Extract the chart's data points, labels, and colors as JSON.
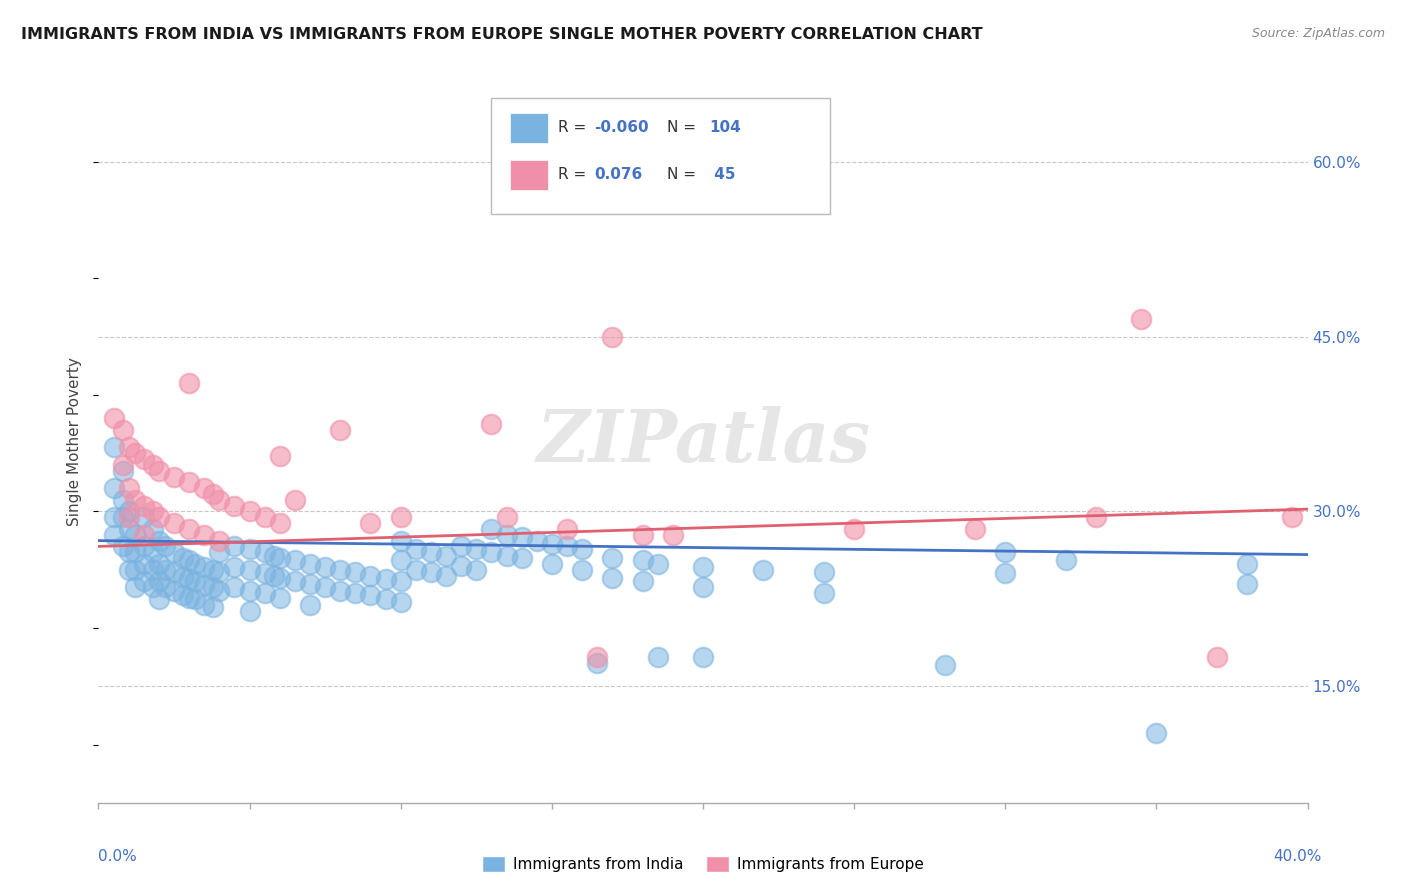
{
  "title": "IMMIGRANTS FROM INDIA VS IMMIGRANTS FROM EUROPE SINGLE MOTHER POVERTY CORRELATION CHART",
  "source": "Source: ZipAtlas.com",
  "ylabel": "Single Mother Poverty",
  "y_tick_labels": [
    "15.0%",
    "30.0%",
    "45.0%",
    "60.0%"
  ],
  "y_tick_values": [
    0.15,
    0.3,
    0.45,
    0.6
  ],
  "x_range": [
    0.0,
    0.4
  ],
  "y_range": [
    0.05,
    0.67
  ],
  "india_color": "#7ab3e0",
  "europe_color": "#f090a8",
  "india_line_color": "#4472c4",
  "europe_line_color": "#e06070",
  "watermark": "ZIPatlas",
  "background_color": "#ffffff",
  "grid_color": "#c8c8c8",
  "india_line_start_y": 0.275,
  "india_line_end_y": 0.263,
  "europe_line_start_y": 0.27,
  "europe_line_end_y": 0.302,
  "india_scatter": [
    [
      0.005,
      0.355
    ],
    [
      0.005,
      0.32
    ],
    [
      0.005,
      0.295
    ],
    [
      0.005,
      0.28
    ],
    [
      0.008,
      0.335
    ],
    [
      0.008,
      0.31
    ],
    [
      0.008,
      0.295
    ],
    [
      0.008,
      0.27
    ],
    [
      0.01,
      0.3
    ],
    [
      0.01,
      0.285
    ],
    [
      0.01,
      0.265
    ],
    [
      0.01,
      0.25
    ],
    [
      0.012,
      0.28
    ],
    [
      0.012,
      0.265
    ],
    [
      0.012,
      0.25
    ],
    [
      0.012,
      0.235
    ],
    [
      0.015,
      0.295
    ],
    [
      0.015,
      0.27
    ],
    [
      0.015,
      0.255
    ],
    [
      0.015,
      0.24
    ],
    [
      0.018,
      0.285
    ],
    [
      0.018,
      0.265
    ],
    [
      0.018,
      0.25
    ],
    [
      0.018,
      0.235
    ],
    [
      0.02,
      0.275
    ],
    [
      0.02,
      0.255
    ],
    [
      0.02,
      0.24
    ],
    [
      0.02,
      0.225
    ],
    [
      0.022,
      0.27
    ],
    [
      0.022,
      0.25
    ],
    [
      0.022,
      0.235
    ],
    [
      0.025,
      0.265
    ],
    [
      0.025,
      0.248
    ],
    [
      0.025,
      0.232
    ],
    [
      0.028,
      0.26
    ],
    [
      0.028,
      0.244
    ],
    [
      0.028,
      0.228
    ],
    [
      0.03,
      0.258
    ],
    [
      0.03,
      0.242
    ],
    [
      0.03,
      0.226
    ],
    [
      0.032,
      0.255
    ],
    [
      0.032,
      0.24
    ],
    [
      0.032,
      0.225
    ],
    [
      0.035,
      0.252
    ],
    [
      0.035,
      0.237
    ],
    [
      0.035,
      0.22
    ],
    [
      0.038,
      0.25
    ],
    [
      0.038,
      0.235
    ],
    [
      0.038,
      0.218
    ],
    [
      0.04,
      0.265
    ],
    [
      0.04,
      0.248
    ],
    [
      0.04,
      0.232
    ],
    [
      0.045,
      0.27
    ],
    [
      0.045,
      0.252
    ],
    [
      0.045,
      0.235
    ],
    [
      0.05,
      0.268
    ],
    [
      0.05,
      0.25
    ],
    [
      0.05,
      0.232
    ],
    [
      0.05,
      0.215
    ],
    [
      0.055,
      0.265
    ],
    [
      0.055,
      0.247
    ],
    [
      0.055,
      0.23
    ],
    [
      0.058,
      0.262
    ],
    [
      0.058,
      0.245
    ],
    [
      0.06,
      0.26
    ],
    [
      0.06,
      0.243
    ],
    [
      0.06,
      0.226
    ],
    [
      0.065,
      0.258
    ],
    [
      0.065,
      0.24
    ],
    [
      0.07,
      0.255
    ],
    [
      0.07,
      0.238
    ],
    [
      0.07,
      0.22
    ],
    [
      0.075,
      0.252
    ],
    [
      0.075,
      0.235
    ],
    [
      0.08,
      0.25
    ],
    [
      0.08,
      0.232
    ],
    [
      0.085,
      0.248
    ],
    [
      0.085,
      0.23
    ],
    [
      0.09,
      0.245
    ],
    [
      0.09,
      0.228
    ],
    [
      0.095,
      0.242
    ],
    [
      0.095,
      0.225
    ],
    [
      0.1,
      0.275
    ],
    [
      0.1,
      0.258
    ],
    [
      0.1,
      0.24
    ],
    [
      0.1,
      0.222
    ],
    [
      0.105,
      0.268
    ],
    [
      0.105,
      0.25
    ],
    [
      0.11,
      0.265
    ],
    [
      0.11,
      0.248
    ],
    [
      0.115,
      0.262
    ],
    [
      0.115,
      0.245
    ],
    [
      0.12,
      0.27
    ],
    [
      0.12,
      0.253
    ],
    [
      0.125,
      0.268
    ],
    [
      0.125,
      0.25
    ],
    [
      0.13,
      0.285
    ],
    [
      0.13,
      0.265
    ],
    [
      0.135,
      0.28
    ],
    [
      0.135,
      0.262
    ],
    [
      0.14,
      0.278
    ],
    [
      0.14,
      0.26
    ],
    [
      0.145,
      0.275
    ],
    [
      0.15,
      0.272
    ],
    [
      0.15,
      0.255
    ],
    [
      0.155,
      0.27
    ],
    [
      0.16,
      0.268
    ],
    [
      0.16,
      0.25
    ],
    [
      0.165,
      0.17
    ],
    [
      0.17,
      0.26
    ],
    [
      0.17,
      0.243
    ],
    [
      0.18,
      0.258
    ],
    [
      0.18,
      0.24
    ],
    [
      0.185,
      0.255
    ],
    [
      0.185,
      0.175
    ],
    [
      0.2,
      0.252
    ],
    [
      0.2,
      0.235
    ],
    [
      0.2,
      0.175
    ],
    [
      0.22,
      0.25
    ],
    [
      0.24,
      0.248
    ],
    [
      0.24,
      0.23
    ],
    [
      0.28,
      0.168
    ],
    [
      0.3,
      0.265
    ],
    [
      0.3,
      0.247
    ],
    [
      0.32,
      0.258
    ],
    [
      0.35,
      0.11
    ],
    [
      0.38,
      0.255
    ],
    [
      0.38,
      0.238
    ]
  ],
  "europe_scatter": [
    [
      0.005,
      0.38
    ],
    [
      0.008,
      0.37
    ],
    [
      0.008,
      0.34
    ],
    [
      0.01,
      0.355
    ],
    [
      0.01,
      0.32
    ],
    [
      0.01,
      0.295
    ],
    [
      0.012,
      0.35
    ],
    [
      0.012,
      0.31
    ],
    [
      0.015,
      0.345
    ],
    [
      0.015,
      0.305
    ],
    [
      0.015,
      0.28
    ],
    [
      0.018,
      0.34
    ],
    [
      0.018,
      0.3
    ],
    [
      0.02,
      0.335
    ],
    [
      0.02,
      0.295
    ],
    [
      0.025,
      0.33
    ],
    [
      0.025,
      0.29
    ],
    [
      0.03,
      0.41
    ],
    [
      0.03,
      0.325
    ],
    [
      0.03,
      0.285
    ],
    [
      0.035,
      0.32
    ],
    [
      0.035,
      0.28
    ],
    [
      0.038,
      0.315
    ],
    [
      0.04,
      0.31
    ],
    [
      0.04,
      0.275
    ],
    [
      0.045,
      0.305
    ],
    [
      0.05,
      0.3
    ],
    [
      0.055,
      0.295
    ],
    [
      0.06,
      0.29
    ],
    [
      0.06,
      0.348
    ],
    [
      0.065,
      0.31
    ],
    [
      0.08,
      0.37
    ],
    [
      0.09,
      0.29
    ],
    [
      0.1,
      0.295
    ],
    [
      0.13,
      0.375
    ],
    [
      0.135,
      0.295
    ],
    [
      0.155,
      0.285
    ],
    [
      0.165,
      0.175
    ],
    [
      0.17,
      0.45
    ],
    [
      0.18,
      0.28
    ],
    [
      0.19,
      0.28
    ],
    [
      0.25,
      0.285
    ],
    [
      0.29,
      0.285
    ],
    [
      0.33,
      0.295
    ],
    [
      0.345,
      0.465
    ],
    [
      0.37,
      0.175
    ],
    [
      0.395,
      0.295
    ]
  ]
}
